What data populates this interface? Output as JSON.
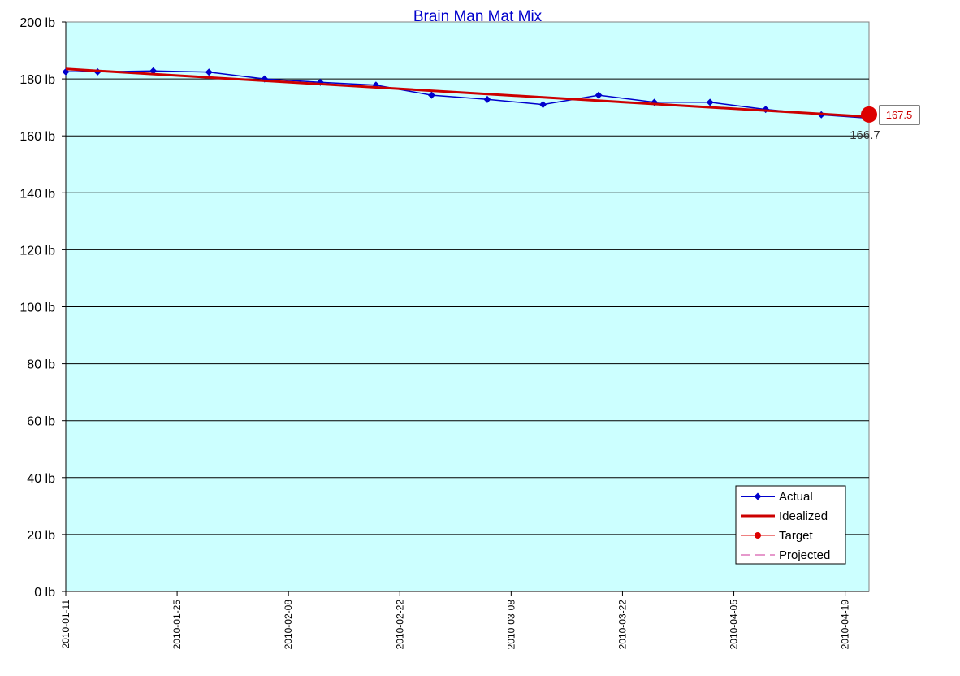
{
  "chart_data": {
    "type": "line",
    "title": "Brain Man Mat Mix",
    "xlabel": "",
    "ylabel": "",
    "ylim": [
      0,
      200
    ],
    "y_unit": "lb",
    "y_ticks": [
      "0 lb",
      "20 lb",
      "40 lb",
      "60 lb",
      "80 lb",
      "100 lb",
      "120 lb",
      "140 lb",
      "160 lb",
      "180 lb",
      "200 lb"
    ],
    "x_range": [
      "2010-01-11",
      "2010-04-22"
    ],
    "x_ticks": [
      "2010-01-11",
      "2010-01-25",
      "2010-02-08",
      "2010-02-22",
      "2010-03-08",
      "2010-03-22",
      "2010-04-05",
      "2010-04-19"
    ],
    "grid": true,
    "background_color": "#ccffff",
    "legend_position": "bottom-right",
    "series": [
      {
        "name": "Actual",
        "color": "#0000cc",
        "marker": "diamond",
        "x": [
          "2010-01-11",
          "2010-01-15",
          "2010-01-22",
          "2010-01-29",
          "2010-02-05",
          "2010-02-12",
          "2010-02-19",
          "2010-02-26",
          "2010-03-05",
          "2010-03-12",
          "2010-03-19",
          "2010-03-26",
          "2010-04-02",
          "2010-04-09",
          "2010-04-16",
          "2010-04-22"
        ],
        "y": [
          182.5,
          182.5,
          182.8,
          182.4,
          180.0,
          178.8,
          177.8,
          174.3,
          172.8,
          171.0,
          174.3,
          171.8,
          171.8,
          169.3,
          167.4,
          166.2
        ]
      },
      {
        "name": "Idealized",
        "color": "#cc0000",
        "x": [
          "2010-01-11",
          "2010-04-22"
        ],
        "y": [
          183.5,
          166.7
        ]
      },
      {
        "name": "Target",
        "color": "#dd0000",
        "marker": "circle",
        "x": [
          "2010-04-22"
        ],
        "y": [
          167.5
        ]
      },
      {
        "name": "Projected",
        "color": "#cc3399",
        "dash": true,
        "x": [],
        "y": []
      }
    ],
    "annotations": {
      "end_value": "166.7",
      "target_label": "167.5"
    }
  }
}
